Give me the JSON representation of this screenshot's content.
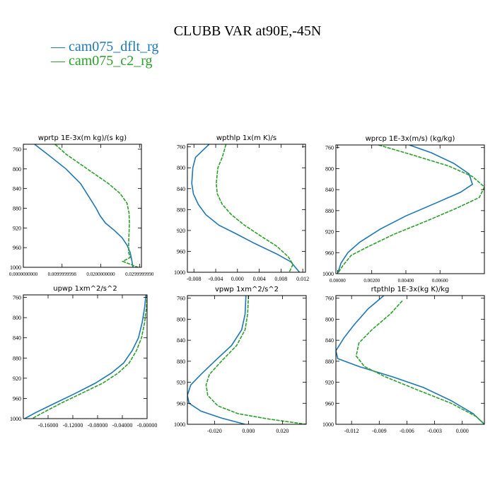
{
  "title": "CLUBB VAR at90E,-45N",
  "legend": [
    {
      "label": "cam075_dflt_rg",
      "color": "#1f77b4"
    },
    {
      "label": "cam075_c2_rg",
      "color": "#2ca02c"
    }
  ],
  "chart_data": [
    {
      "type": "line",
      "title": "wprtp  1E-3x(m kg)/(s kg)",
      "xlim": [
        0.0,
        0.0305
      ],
      "ylim": [
        1000,
        750
      ],
      "xticks": [
        0.0,
        0.01,
        0.02,
        0.03
      ],
      "xtick_labels": [
        "0.0000000000",
        "0.0099999998",
        "0.0200000000",
        "0.0299999990"
      ],
      "yticks": [
        760,
        800,
        840,
        880,
        920,
        960,
        1000
      ],
      "series": [
        {
          "name": "cam075_dflt_rg",
          "x": [
            0.0029,
            0.007,
            0.011,
            0.0148,
            0.0172,
            0.0188,
            0.0198,
            0.0212,
            0.0235,
            0.0255,
            0.0268,
            0.0276,
            0.028,
            0.0283
          ],
          "y": [
            750,
            775,
            800,
            830,
            860,
            880,
            895,
            910,
            925,
            940,
            955,
            970,
            985,
            1000
          ]
        },
        {
          "name": "cam075_c2_rg",
          "x": [
            0.0082,
            0.011,
            0.0165,
            0.022,
            0.025,
            0.0268,
            0.0273,
            0.0274,
            0.0273,
            0.0272,
            0.0272,
            0.0276,
            0.0257,
            0.0296
          ],
          "y": [
            750,
            770,
            800,
            830,
            850,
            870,
            890,
            910,
            930,
            950,
            970,
            980,
            988,
            1000
          ]
        }
      ]
    },
    {
      "type": "line",
      "title": "wpthlp  1x(m K)/s",
      "xlim": [
        -0.0092,
        0.0125
      ],
      "ylim": [
        1000,
        755
      ],
      "xticks": [
        -0.008,
        -0.004,
        0.0,
        0.004,
        0.008,
        0.012
      ],
      "xtick_labels": [
        "-0.008",
        "-0.004",
        "0.000",
        "0.004",
        "0.008",
        "0.012"
      ],
      "yticks": [
        760,
        800,
        840,
        880,
        920,
        960,
        1000
      ],
      "series": [
        {
          "name": "cam075_dflt_rg",
          "x": [
            -0.0052,
            -0.0065,
            -0.0077,
            -0.0082,
            -0.0084,
            -0.0081,
            -0.0072,
            -0.0058,
            -0.0034,
            -0.0005,
            0.0032,
            0.0072,
            0.0098,
            0.0114
          ],
          "y": [
            755,
            768,
            780,
            800,
            830,
            850,
            870,
            890,
            910,
            925,
            945,
            965,
            980,
            1000
          ]
        },
        {
          "name": "cam075_c2_rg",
          "x": [
            -0.0021,
            -0.0028,
            -0.0036,
            -0.0039,
            -0.0037,
            -0.0028,
            -0.0011,
            0.0013,
            0.0042,
            0.0072,
            0.0093,
            0.0102,
            0.0095
          ],
          "y": [
            755,
            780,
            800,
            830,
            850,
            870,
            890,
            910,
            930,
            950,
            970,
            985,
            1000
          ]
        }
      ]
    },
    {
      "type": "line",
      "title": "wprcp  1E-3x(m/s) (kg/kg)",
      "xlim": [
        -0.0001,
        0.0086
      ],
      "ylim": [
        1000,
        755
      ],
      "xticks": [
        0.0,
        0.002,
        0.004,
        0.006
      ],
      "xtick_labels": [
        "0.00000",
        "0.00200",
        "0.00400",
        "0.00600"
      ],
      "yticks": [
        760,
        800,
        840,
        880,
        920,
        960,
        1000
      ],
      "series": [
        {
          "name": "cam075_dflt_rg",
          "x": [
            0.0042,
            0.0055,
            0.0068,
            0.0077,
            0.0079,
            0.0072,
            0.0058,
            0.004,
            0.0025,
            0.0013,
            0.0006,
            0.0002,
            0.0
          ],
          "y": [
            755,
            770,
            790,
            810,
            830,
            845,
            865,
            890,
            915,
            940,
            960,
            980,
            1000
          ]
        },
        {
          "name": "cam075_c2_rg",
          "x": [
            0.0024,
            0.0045,
            0.0065,
            0.0079,
            0.0086,
            0.0083,
            0.007,
            0.0052,
            0.0033,
            0.0017,
            0.0008,
            0.0003,
            0.0
          ],
          "y": [
            755,
            775,
            795,
            815,
            835,
            855,
            875,
            900,
            925,
            950,
            965,
            985,
            1000
          ]
        }
      ]
    },
    {
      "type": "line",
      "title": "upwp  1xm^2/s^2",
      "xlim": [
        -0.2,
        0.0
      ],
      "ylim": [
        1000,
        755
      ],
      "xticks": [
        -0.16,
        -0.12,
        -0.08,
        -0.04,
        0.0
      ],
      "xtick_labels": [
        "-0.16000",
        "-0.12000",
        "-0.08000",
        "-0.04000",
        "-0.00000"
      ],
      "yticks": [
        760,
        800,
        840,
        880,
        920,
        960,
        1000
      ],
      "series": [
        {
          "name": "cam075_dflt_rg",
          "x": [
            -0.002,
            -0.004,
            -0.008,
            -0.014,
            -0.024,
            -0.038,
            -0.058,
            -0.084,
            -0.116,
            -0.15,
            -0.18,
            -0.198
          ],
          "y": [
            755,
            780,
            810,
            840,
            865,
            890,
            910,
            930,
            950,
            970,
            988,
            1000
          ]
        },
        {
          "name": "cam075_c2_rg",
          "x": [
            0.0,
            -0.001,
            -0.004,
            -0.009,
            -0.017,
            -0.029,
            -0.047,
            -0.072,
            -0.106,
            -0.14,
            -0.168,
            -0.186
          ],
          "y": [
            755,
            780,
            810,
            840,
            865,
            890,
            910,
            930,
            950,
            970,
            988,
            1000
          ]
        }
      ]
    },
    {
      "type": "line",
      "title": "vpwp  1xm^2/s^2",
      "xlim": [
        -0.036,
        0.034
      ],
      "ylim": [
        1000,
        755
      ],
      "xticks": [
        -0.02,
        0.0,
        0.02
      ],
      "xtick_labels": [
        "-0.020",
        "0.000",
        "0.020"
      ],
      "yticks": [
        760,
        800,
        840,
        880,
        920,
        960,
        1000
      ],
      "series": [
        {
          "name": "cam075_dflt_rg",
          "x": [
            -0.0015,
            -0.002,
            -0.004,
            -0.01,
            -0.02,
            -0.028,
            -0.034,
            -0.036,
            -0.035,
            -0.028,
            -0.016,
            -0.002
          ],
          "y": [
            755,
            790,
            820,
            850,
            880,
            905,
            925,
            945,
            960,
            975,
            988,
            1000
          ]
        },
        {
          "name": "cam075_c2_rg",
          "x": [
            0.0,
            -0.0005,
            -0.002,
            -0.007,
            -0.016,
            -0.023,
            -0.025,
            -0.024,
            -0.018,
            -0.006,
            0.012,
            0.034
          ],
          "y": [
            755,
            790,
            820,
            850,
            880,
            905,
            925,
            945,
            965,
            980,
            990,
            1000
          ]
        }
      ]
    },
    {
      "type": "line",
      "title": "rtpthlp  1E-3x(kg K)/kg",
      "xlim": [
        -0.0137,
        0.0024
      ],
      "ylim": [
        1000,
        755
      ],
      "xticks": [
        -0.012,
        -0.009,
        -0.006,
        -0.003,
        0.0
      ],
      "xtick_labels": [
        "-0.012",
        "-0.009",
        "-0.006",
        "-0.003",
        "0.000"
      ],
      "yticks": [
        760,
        800,
        840,
        880,
        920,
        960,
        1000
      ],
      "series": [
        {
          "name": "cam075_dflt_rg",
          "x": [
            -0.0085,
            -0.0102,
            -0.0117,
            -0.0128,
            -0.0137,
            -0.0135,
            -0.0112,
            -0.0075,
            -0.0042,
            -0.0012,
            0.0012,
            0.0024
          ],
          "y": [
            755,
            780,
            810,
            835,
            860,
            875,
            890,
            910,
            930,
            955,
            980,
            1000
          ]
        },
        {
          "name": "cam075_c2_rg",
          "x": [
            -0.0065,
            -0.0078,
            -0.0098,
            -0.0112,
            -0.0115,
            -0.0106,
            -0.0083,
            -0.0048,
            -0.0012,
            0.0015,
            0.0024
          ],
          "y": [
            765,
            790,
            820,
            845,
            870,
            890,
            910,
            935,
            960,
            985,
            1000
          ]
        }
      ]
    }
  ]
}
